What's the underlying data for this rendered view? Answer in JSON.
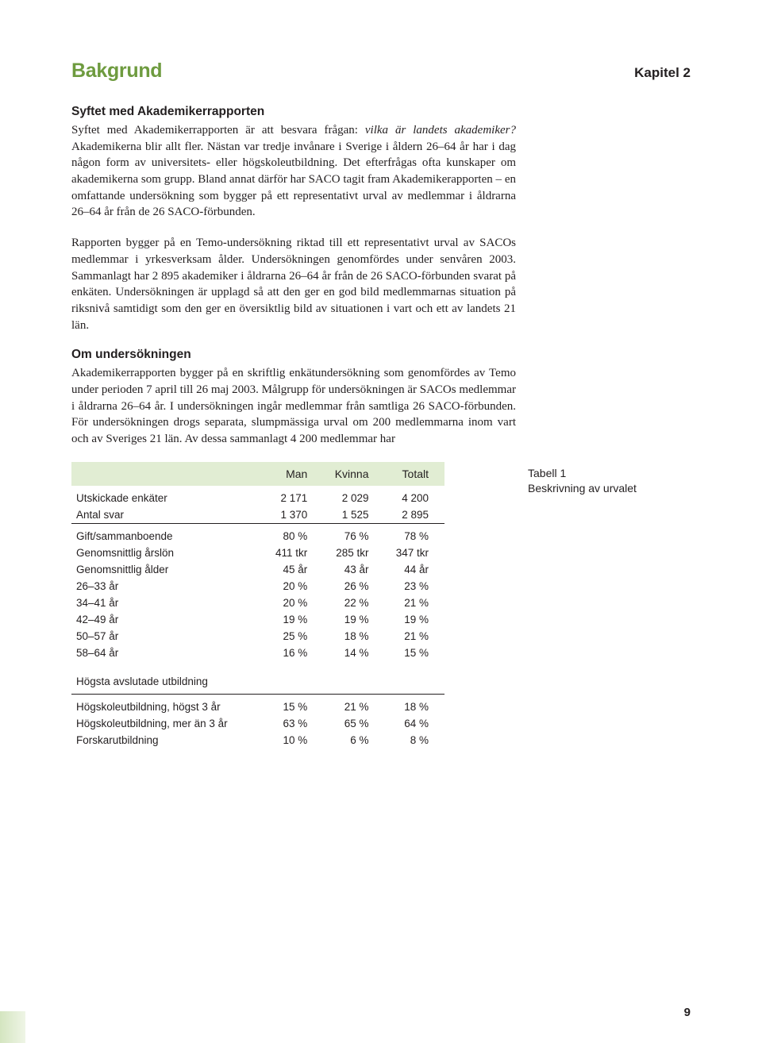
{
  "header": {
    "title": "Bakgrund",
    "chapter": "Kapitel 2"
  },
  "section1": {
    "heading": "Syftet med Akademikerrapporten",
    "p1a": "Syftet med Akademikerrapporten är att besvara frågan: ",
    "p1b": "vilka är landets akademiker?",
    "p1c": " Akademikerna blir allt fler. Nästan var tredje invånare i Sverige i åldern 26–64 år har i dag någon form av universitets- eller högskoleutbildning. Det efterfrågas ofta kunskaper om akademikerna som grupp. Bland annat därför har SACO tagit fram Akademikerapporten – en omfattande undersökning som bygger på ett representativt urval av medlemmar i åldrarna 26–64 år från de 26 SACO-förbunden.",
    "p2": "Rapporten bygger på en Temo-undersökning riktad till ett representativt urval av SACOs medlemmar i yrkesverksam ålder. Undersökningen genomfördes under senvåren 2003. Sammanlagt har 2 895 akademiker i åldrarna 26–64 år från de 26 SACO-förbunden svarat på enkäten. Undersökningen är upplagd så att den ger en god bild medlemmarnas situation på riksnivå samtidigt som den ger en översiktlig bild av situationen i vart och ett av landets 21 län."
  },
  "section2": {
    "heading": "Om undersökningen",
    "p1": "Akademikerrapporten bygger på en skriftlig enkätundersökning som genomfördes av Temo under perioden 7 april till 26 maj 2003. Målgrupp för undersökningen är SACOs medlemmar i åldrarna 26–64 år. I undersökningen ingår medlemmar från samtliga 26 SACO-förbunden. För undersökningen drogs separata, slumpmässiga urval om 200 medlemmarna inom vart och av Sveriges 21 län. Av dessa sammanlagt 4 200 medlemmar har"
  },
  "table": {
    "columns": [
      "",
      "Man",
      "Kvinna",
      "Totalt"
    ],
    "group1": [
      {
        "label": "Utskickade enkäter",
        "man": "2 171",
        "kvinna": "2 029",
        "totalt": "4 200"
      },
      {
        "label": "Antal svar",
        "man": "1 370",
        "kvinna": "1 525",
        "totalt": "2 895"
      }
    ],
    "group2": [
      {
        "label": "Gift/sammanboende",
        "man": "80 %",
        "kvinna": "76 %",
        "totalt": "78 %"
      },
      {
        "label": "Genomsnittlig årslön",
        "man": "411 tkr",
        "kvinna": "285 tkr",
        "totalt": "347 tkr"
      },
      {
        "label": "Genomsnittlig ålder",
        "man": "45 år",
        "kvinna": "43 år",
        "totalt": "44 år"
      },
      {
        "label": "26–33 år",
        "man": "20 %",
        "kvinna": "26 %",
        "totalt": "23 %"
      },
      {
        "label": "34–41 år",
        "man": "20 %",
        "kvinna": "22 %",
        "totalt": "21 %"
      },
      {
        "label": "42–49 år",
        "man": "19 %",
        "kvinna": "19 %",
        "totalt": "19 %"
      },
      {
        "label": "50–57 år",
        "man": "25 %",
        "kvinna": "18 %",
        "totalt": "21 %"
      },
      {
        "label": "58–64 år",
        "man": "16 %",
        "kvinna": "14 %",
        "totalt": "15 %"
      }
    ],
    "subheader": "Högsta avslutade utbildning",
    "group3": [
      {
        "label": "Högskoleutbildning, högst 3 år",
        "man": "15 %",
        "kvinna": "21 %",
        "totalt": "18 %"
      },
      {
        "label": "Högskoleutbildning, mer än 3 år",
        "man": "63 %",
        "kvinna": "65 %",
        "totalt": "64 %"
      },
      {
        "label": "Forskarutbildning",
        "man": "10 %",
        "kvinna": "6 %",
        "totalt": "8 %"
      }
    ]
  },
  "caption": {
    "line1": "Tabell 1",
    "line2": "Beskrivning av urvalet"
  },
  "pageNumber": "9"
}
